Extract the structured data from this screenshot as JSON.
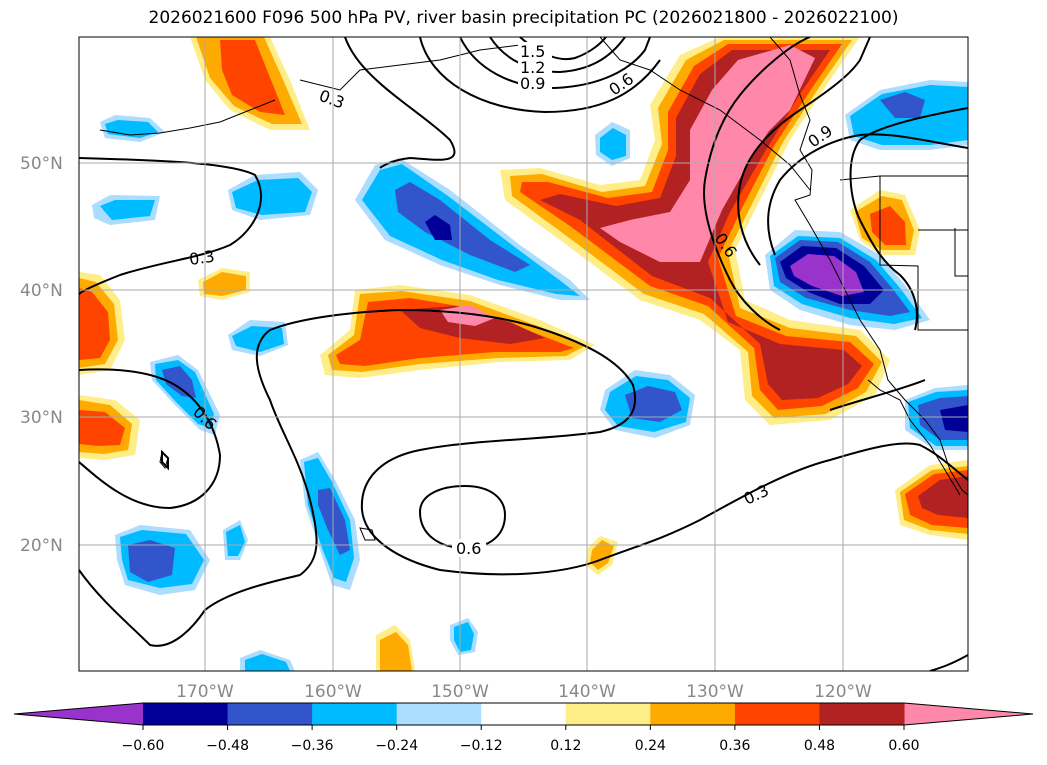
{
  "title": "2026021600 F096 500 hPa PV, river basin precipitation PC (2026021800 - 2026022100)",
  "lat_labels": [
    "50°N",
    "40°N",
    "30°N",
    "20°N"
  ],
  "lon_labels": [
    "170°W",
    "160°W",
    "150°W",
    "140°W",
    "130°W",
    "120°W"
  ],
  "colorbar": {
    "colors": [
      "#9933cc",
      "#000099",
      "#3355cc",
      "#00bbff",
      "#aaddff",
      "#ffffff",
      "#ffee88",
      "#ffaa00",
      "#ff4400",
      "#b22222",
      "#ff88aa"
    ],
    "tick_labels": [
      "−0.60",
      "−0.48",
      "−0.36",
      "−0.24",
      "−0.12",
      "0.12",
      "0.24",
      "0.36",
      "0.48",
      "0.60"
    ]
  },
  "contour_labels": {
    "c1": "1.5",
    "c2": "1.2",
    "c3": "0.9",
    "c4": "0.6",
    "c5": "0.3",
    "c6": "0.9",
    "c7": "0.6",
    "c8": "0.3",
    "c9": "0.6",
    "c10": "0.3",
    "c11": "0.6"
  }
}
